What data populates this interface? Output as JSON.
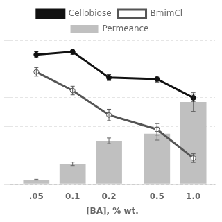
{
  "chart_data": {
    "type": "bar",
    "xlabel": "[BA], % wt.",
    "x": [
      0.05,
      0.1,
      0.2,
      0.5,
      1.0
    ],
    "log": "x",
    "xlim": [
      0.03012,
      1.5136
    ],
    "xticks": [
      {
        "value": 0.05,
        "label": ".05"
      },
      {
        "value": 0.1,
        "label": "0.1"
      },
      {
        "value": 0.2,
        "label": "0.2"
      },
      {
        "value": 0.5,
        "label": "0.5"
      },
      {
        "value": 1.0,
        "label": "1.0"
      }
    ],
    "ylim": [
      0,
      100
    ],
    "yticks": [
      0,
      20,
      40,
      60,
      80,
      100
    ],
    "tick_labels": "x",
    "grid": true,
    "legend": "top",
    "series": [
      {
        "name": "Permeance",
        "type": "bar",
        "color": "#c0c0c0",
        "values": [
          3,
          14,
          30,
          35,
          57
        ],
        "errors": [
          0.3,
          1.2,
          2.0,
          4.5,
          6.5
        ]
      },
      {
        "name": "Cellobiose",
        "type": "line",
        "color": "#111111",
        "marker": "circle",
        "values": [
          90,
          92,
          74,
          73,
          60
        ],
        "errors": [
          2.0,
          1.8,
          2.0,
          2.0,
          2.5
        ]
      },
      {
        "name": "BmimCl",
        "type": "line",
        "color": "#555555",
        "marker": "open_circle",
        "values": [
          78,
          65,
          48,
          38,
          18
        ],
        "errors": [
          3.0,
          3.0,
          4.0,
          4.0,
          3.0
        ]
      }
    ]
  }
}
